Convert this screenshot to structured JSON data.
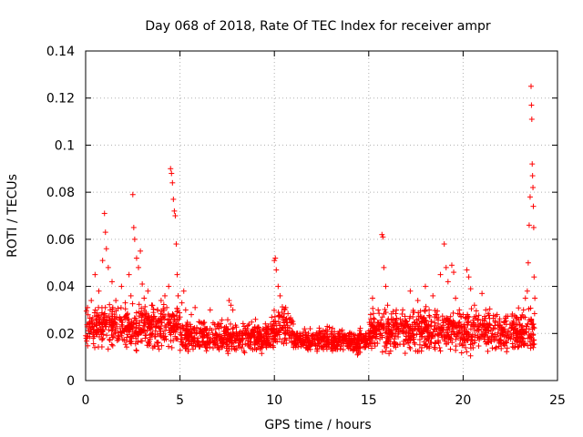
{
  "chart_data": {
    "type": "scatter",
    "title": "Day 068 of 2018, Rate Of TEC Index for receiver ampr",
    "xlabel": "GPS time / hours",
    "ylabel": "ROTI / TECUs",
    "xlim": [
      0,
      25
    ],
    "ylim": [
      0,
      0.14
    ],
    "grid": true,
    "marker": "+",
    "color": "#ff0000",
    "xticks": [
      0,
      5,
      10,
      15,
      20,
      25
    ],
    "yticks": [
      0,
      0.02,
      0.04,
      0.06,
      0.08,
      0.1,
      0.12,
      0.14
    ],
    "xtick_labels": [
      "0",
      "5",
      "10",
      "15",
      "20",
      "25"
    ],
    "ytick_labels": [
      "0",
      "0.02",
      "0.04",
      "0.06",
      "0.08",
      "0.1",
      "0.12",
      "0.14"
    ],
    "series": [
      {
        "name": "ROTI",
        "points": [
          [
            0.1,
            0.031
          ],
          [
            0.2,
            0.024
          ],
          [
            0.3,
            0.034
          ],
          [
            0.4,
            0.018
          ],
          [
            0.5,
            0.045
          ],
          [
            0.6,
            0.026
          ],
          [
            0.7,
            0.038
          ],
          [
            0.8,
            0.022
          ],
          [
            0.9,
            0.051
          ],
          [
            1.0,
            0.071
          ],
          [
            1.05,
            0.063
          ],
          [
            1.1,
            0.056
          ],
          [
            1.2,
            0.048
          ],
          [
            1.3,
            0.03
          ],
          [
            1.4,
            0.042
          ],
          [
            1.5,
            0.025
          ],
          [
            1.6,
            0.034
          ],
          [
            1.7,
            0.018
          ],
          [
            1.8,
            0.027
          ],
          [
            1.9,
            0.04
          ],
          [
            2.0,
            0.021
          ],
          [
            2.1,
            0.033
          ],
          [
            2.2,
            0.028
          ],
          [
            2.3,
            0.045
          ],
          [
            2.4,
            0.036
          ],
          [
            2.5,
            0.079
          ],
          [
            2.55,
            0.065
          ],
          [
            2.6,
            0.06
          ],
          [
            2.7,
            0.052
          ],
          [
            2.8,
            0.048
          ],
          [
            2.9,
            0.055
          ],
          [
            3.0,
            0.041
          ],
          [
            3.1,
            0.035
          ],
          [
            3.2,
            0.029
          ],
          [
            3.3,
            0.038
          ],
          [
            3.4,
            0.024
          ],
          [
            3.5,
            0.032
          ],
          [
            3.6,
            0.027
          ],
          [
            3.7,
            0.021
          ],
          [
            3.8,
            0.03
          ],
          [
            3.9,
            0.025
          ],
          [
            4.0,
            0.034
          ],
          [
            4.1,
            0.028
          ],
          [
            4.2,
            0.036
          ],
          [
            4.3,
            0.031
          ],
          [
            4.4,
            0.04
          ],
          [
            4.5,
            0.09
          ],
          [
            4.55,
            0.088
          ],
          [
            4.6,
            0.084
          ],
          [
            4.65,
            0.077
          ],
          [
            4.7,
            0.072
          ],
          [
            4.75,
            0.07
          ],
          [
            4.8,
            0.058
          ],
          [
            4.85,
            0.045
          ],
          [
            4.9,
            0.036
          ],
          [
            5.0,
            0.027
          ],
          [
            5.1,
            0.033
          ],
          [
            5.2,
            0.038
          ],
          [
            5.3,
            0.03
          ],
          [
            5.4,
            0.024
          ],
          [
            5.5,
            0.019
          ],
          [
            5.6,
            0.028
          ],
          [
            5.7,
            0.022
          ],
          [
            5.8,
            0.031
          ],
          [
            5.9,
            0.017
          ],
          [
            6.0,
            0.025
          ],
          [
            6.2,
            0.019
          ],
          [
            6.4,
            0.022
          ],
          [
            6.6,
            0.03
          ],
          [
            6.8,
            0.016
          ],
          [
            7.0,
            0.024
          ],
          [
            7.2,
            0.018
          ],
          [
            7.4,
            0.021
          ],
          [
            7.6,
            0.034
          ],
          [
            7.7,
            0.032
          ],
          [
            7.8,
            0.03
          ],
          [
            8.0,
            0.02
          ],
          [
            8.2,
            0.017
          ],
          [
            8.4,
            0.023
          ],
          [
            8.6,
            0.015
          ],
          [
            8.8,
            0.021
          ],
          [
            9.0,
            0.026
          ],
          [
            9.2,
            0.018
          ],
          [
            9.4,
            0.022
          ],
          [
            9.6,
            0.017
          ],
          [
            9.8,
            0.024
          ],
          [
            10.0,
            0.051
          ],
          [
            10.05,
            0.052
          ],
          [
            10.1,
            0.047
          ],
          [
            10.2,
            0.04
          ],
          [
            10.3,
            0.036
          ],
          [
            10.4,
            0.029
          ],
          [
            10.6,
            0.031
          ],
          [
            10.8,
            0.026
          ],
          [
            11.0,
            0.024
          ],
          [
            11.2,
            0.02
          ],
          [
            11.4,
            0.018
          ],
          [
            11.6,
            0.022
          ],
          [
            11.8,
            0.016
          ],
          [
            12.0,
            0.019
          ],
          [
            12.2,
            0.015
          ],
          [
            12.4,
            0.021
          ],
          [
            12.6,
            0.018
          ],
          [
            12.8,
            0.023
          ],
          [
            13.0,
            0.017
          ],
          [
            13.2,
            0.014
          ],
          [
            13.4,
            0.02
          ],
          [
            13.6,
            0.016
          ],
          [
            13.8,
            0.019
          ],
          [
            14.0,
            0.015
          ],
          [
            14.2,
            0.018
          ],
          [
            14.4,
            0.016
          ],
          [
            14.6,
            0.017
          ],
          [
            14.8,
            0.014
          ],
          [
            15.0,
            0.021
          ],
          [
            15.1,
            0.028
          ],
          [
            15.2,
            0.035
          ],
          [
            15.3,
            0.026
          ],
          [
            15.4,
            0.022
          ],
          [
            15.5,
            0.03
          ],
          [
            15.6,
            0.024
          ],
          [
            15.7,
            0.062
          ],
          [
            15.75,
            0.061
          ],
          [
            15.8,
            0.048
          ],
          [
            15.9,
            0.04
          ],
          [
            16.0,
            0.032
          ],
          [
            16.2,
            0.026
          ],
          [
            16.4,
            0.019
          ],
          [
            16.6,
            0.023
          ],
          [
            16.8,
            0.03
          ],
          [
            17.0,
            0.025
          ],
          [
            17.2,
            0.038
          ],
          [
            17.4,
            0.029
          ],
          [
            17.6,
            0.034
          ],
          [
            17.8,
            0.027
          ],
          [
            18.0,
            0.04
          ],
          [
            18.2,
            0.03
          ],
          [
            18.4,
            0.036
          ],
          [
            18.6,
            0.028
          ],
          [
            18.8,
            0.045
          ],
          [
            19.0,
            0.058
          ],
          [
            19.1,
            0.048
          ],
          [
            19.2,
            0.042
          ],
          [
            19.4,
            0.049
          ],
          [
            19.5,
            0.046
          ],
          [
            19.6,
            0.035
          ],
          [
            19.8,
            0.03
          ],
          [
            20.0,
            0.028
          ],
          [
            20.2,
            0.047
          ],
          [
            20.3,
            0.044
          ],
          [
            20.4,
            0.039
          ],
          [
            20.6,
            0.032
          ],
          [
            20.8,
            0.026
          ],
          [
            21.0,
            0.037
          ],
          [
            21.2,
            0.03
          ],
          [
            21.4,
            0.024
          ],
          [
            21.6,
            0.022
          ],
          [
            21.8,
            0.028
          ],
          [
            22.0,
            0.02
          ],
          [
            22.2,
            0.025
          ],
          [
            22.4,
            0.018
          ],
          [
            22.6,
            0.024
          ],
          [
            22.8,
            0.027
          ],
          [
            23.0,
            0.021
          ],
          [
            23.2,
            0.03
          ],
          [
            23.3,
            0.035
          ],
          [
            23.4,
            0.038
          ],
          [
            23.45,
            0.05
          ],
          [
            23.5,
            0.066
          ],
          [
            23.55,
            0.078
          ],
          [
            23.6,
            0.125
          ],
          [
            23.62,
            0.117
          ],
          [
            23.64,
            0.111
          ],
          [
            23.66,
            0.092
          ],
          [
            23.68,
            0.087
          ],
          [
            23.7,
            0.082
          ],
          [
            23.72,
            0.074
          ],
          [
            23.74,
            0.065
          ],
          [
            23.76,
            0.044
          ],
          [
            23.8,
            0.035
          ]
        ],
        "noise": {
          "segments": [
            {
              "from": 0.0,
              "to": 5.0,
              "base": 0.023,
              "spread": 0.012
            },
            {
              "from": 5.0,
              "to": 9.8,
              "base": 0.018,
              "spread": 0.009
            },
            {
              "from": 9.8,
              "to": 11.0,
              "base": 0.022,
              "spread": 0.011
            },
            {
              "from": 11.0,
              "to": 15.0,
              "base": 0.017,
              "spread": 0.007
            },
            {
              "from": 15.0,
              "to": 23.8,
              "base": 0.021,
              "spread": 0.012
            }
          ],
          "count": 2200,
          "min": 0.004
        }
      }
    ]
  }
}
